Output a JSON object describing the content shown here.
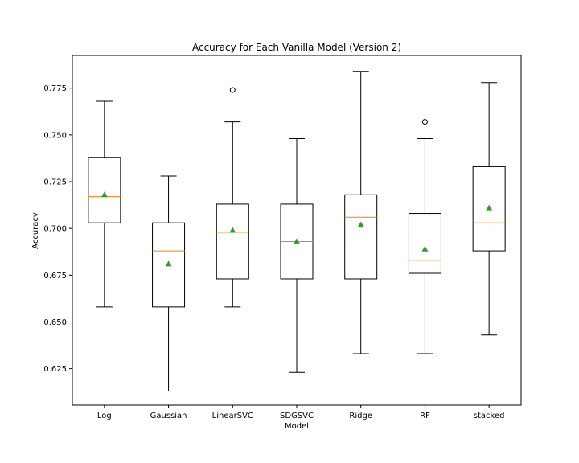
{
  "chart_data": {
    "type": "box",
    "title": "Accuracy for Each Vanilla Model (Version 2)",
    "xlabel": "Model",
    "ylabel": "Accuracy",
    "ylim": [
      0.6055,
      0.7925
    ],
    "yticks": [
      "0.625",
      "0.650",
      "0.675",
      "0.700",
      "0.725",
      "0.750",
      "0.775"
    ],
    "ytick_values": [
      0.625,
      0.65,
      0.675,
      0.7,
      0.725,
      0.75,
      0.775
    ],
    "grid": false,
    "mean_marker": "green triangle",
    "median_color": "#ff7f0e",
    "mean_color": "#2ca02c",
    "categories": [
      "Log",
      "Gaussian",
      "LinearSVC",
      "SDGSVC",
      "Ridge",
      "RF",
      "stacked"
    ],
    "boxes": [
      {
        "label": "Log",
        "whisker_low": 0.658,
        "q1": 0.703,
        "median": 0.717,
        "q3": 0.738,
        "whisker_high": 0.768,
        "mean": 0.718,
        "outliers": []
      },
      {
        "label": "Gaussian",
        "whisker_low": 0.613,
        "q1": 0.658,
        "median": 0.688,
        "q3": 0.703,
        "whisker_high": 0.728,
        "mean": 0.681,
        "outliers": []
      },
      {
        "label": "LinearSVC",
        "whisker_low": 0.658,
        "q1": 0.673,
        "median": 0.698,
        "q3": 0.713,
        "whisker_high": 0.757,
        "mean": 0.699,
        "outliers": [
          0.774
        ]
      },
      {
        "label": "SDGSVC",
        "whisker_low": 0.623,
        "q1": 0.673,
        "median": 0.693,
        "q3": 0.713,
        "whisker_high": 0.748,
        "mean": 0.693,
        "outliers": []
      },
      {
        "label": "Ridge",
        "whisker_low": 0.633,
        "q1": 0.673,
        "median": 0.706,
        "q3": 0.718,
        "whisker_high": 0.784,
        "mean": 0.702,
        "outliers": []
      },
      {
        "label": "RF",
        "whisker_low": 0.633,
        "q1": 0.676,
        "median": 0.683,
        "q3": 0.708,
        "whisker_high": 0.748,
        "mean": 0.689,
        "outliers": [
          0.757
        ]
      },
      {
        "label": "stacked",
        "whisker_low": 0.643,
        "q1": 0.688,
        "median": 0.703,
        "q3": 0.733,
        "whisker_high": 0.778,
        "mean": 0.711,
        "outliers": []
      }
    ]
  }
}
